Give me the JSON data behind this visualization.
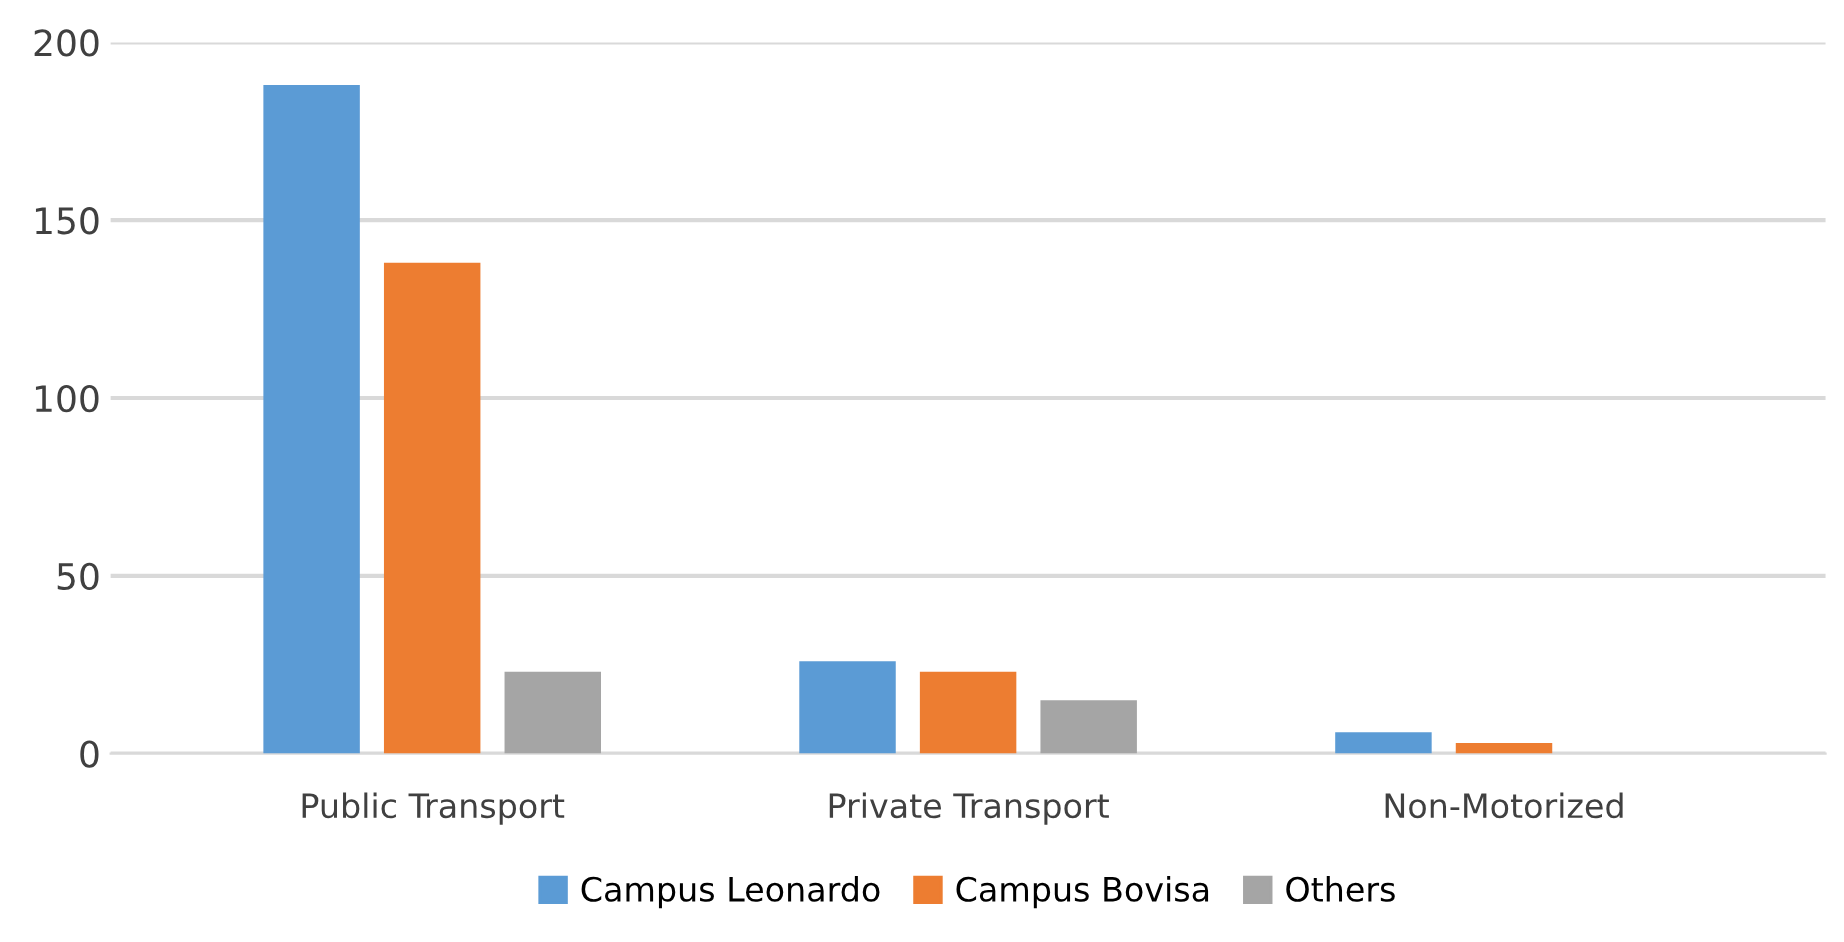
{
  "chart_data": {
    "type": "bar",
    "categories": [
      "Public Transport",
      "Private Transport",
      "Non-Motorized"
    ],
    "series": [
      {
        "name": "Campus Leonardo",
        "color": "#5b9bd5",
        "values": [
          188,
          26,
          6
        ]
      },
      {
        "name": "Campus Bovisa",
        "color": "#ed7d31",
        "values": [
          138,
          23,
          3
        ]
      },
      {
        "name": "Others",
        "color": "#a5a5a5",
        "values": [
          23,
          15,
          0
        ]
      }
    ],
    "ylim": [
      0,
      200
    ],
    "yticks": [
      0,
      50,
      100,
      150,
      200
    ],
    "grid": "y",
    "legend": "bottom"
  }
}
